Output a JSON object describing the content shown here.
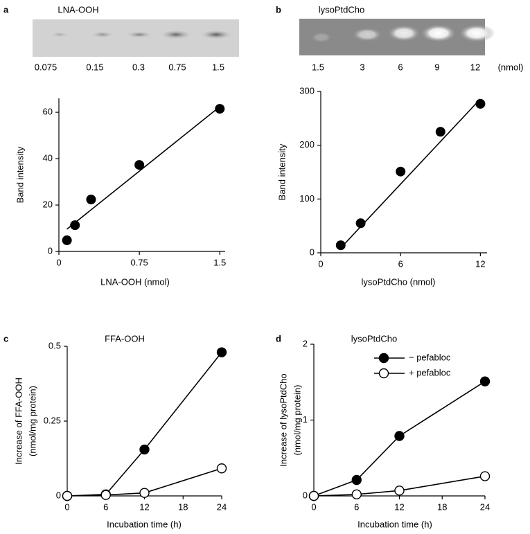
{
  "chart_data": [
    {
      "type": "scatter",
      "panel_label": "a",
      "title": "LNA-OOH",
      "gel_lanes": [
        "0.075",
        "0.15",
        "0.3",
        "0.75",
        "1.5"
      ],
      "x": [
        0.075,
        0.15,
        0.3,
        0.75,
        1.5
      ],
      "values": [
        4.8,
        11.3,
        22.4,
        37.3,
        61.5
      ],
      "color": "#000000",
      "fit_line": {
        "x": [
          0.075,
          1.5
        ],
        "values": [
          9.6,
          62.4
        ]
      },
      "xlabel": "LNA-OOH (nmol)",
      "ylabel": "Band intensity",
      "xlim": [
        0,
        1.55
      ],
      "ylim": [
        0,
        66
      ],
      "xticks": [
        0,
        0.75,
        1.5
      ],
      "yticks": [
        0,
        20,
        40,
        60
      ]
    },
    {
      "type": "scatter",
      "panel_label": "b",
      "title": "lysoPtdCho",
      "gel_lanes": [
        "1.5",
        "3",
        "6",
        "9",
        "12"
      ],
      "gel_unit": "(nmol)",
      "x": [
        1.5,
        3,
        6,
        9,
        12
      ],
      "values": [
        14,
        55,
        151,
        225,
        277
      ],
      "color": "#000000",
      "fit_line": {
        "x": [
          1.5,
          12
        ],
        "values": [
          9,
          286
        ]
      },
      "xlabel": "lysoPtdCho (nmol)",
      "ylabel": "Band intensity",
      "xlim": [
        0,
        12.5
      ],
      "ylim": [
        0,
        300
      ],
      "xticks": [
        0,
        6,
        12
      ],
      "yticks": [
        0,
        100,
        200,
        300
      ]
    },
    {
      "type": "line",
      "panel_label": "c",
      "title": "FFA-OOH",
      "x": [
        0,
        6,
        12,
        24
      ],
      "series": [
        {
          "color": "#000000",
          "marker_fill": "#000000",
          "values": [
            0,
            0.005,
            0.155,
            0.48
          ]
        },
        {
          "color": "#000000",
          "marker_fill": "#ffffff",
          "values": [
            0,
            0.003,
            0.01,
            0.092
          ]
        }
      ],
      "xlabel": "Incubation time (h)",
      "ylabel": [
        "Increase of FFA-OOH",
        "(nmol/mg protein)"
      ],
      "xlim": [
        0,
        24
      ],
      "ylim": [
        0,
        0.5
      ],
      "xticks": [
        0,
        6,
        12,
        18,
        24
      ],
      "yticks": [
        0,
        0.25,
        0.5
      ]
    },
    {
      "type": "line",
      "panel_label": "d",
      "title": "lysoPtdCho",
      "x": [
        0,
        6,
        12,
        24
      ],
      "series": [
        {
          "name": "− pefabloc",
          "color": "#000000",
          "marker_fill": "#000000",
          "values": [
            0,
            0.21,
            0.79,
            1.51
          ]
        },
        {
          "name": "+ pefabloc",
          "color": "#000000",
          "marker_fill": "#ffffff",
          "values": [
            0,
            0.02,
            0.07,
            0.26
          ]
        }
      ],
      "xlabel": "Incubation time (h)",
      "ylabel": [
        "Increase of lysoPtdCho",
        "(nmol/mg protein)"
      ],
      "xlim": [
        0,
        24
      ],
      "ylim": [
        0,
        2
      ],
      "xticks": [
        0,
        6,
        12,
        18,
        24
      ],
      "yticks": [
        0,
        1,
        2
      ]
    }
  ]
}
